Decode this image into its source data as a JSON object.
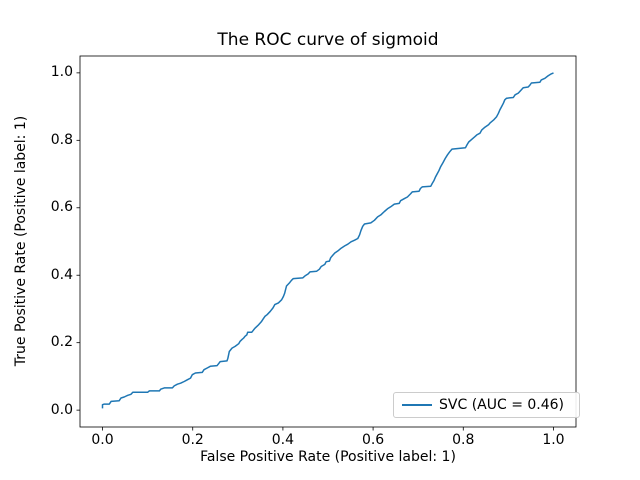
{
  "chart_data": {
    "type": "line",
    "title": "The ROC curve of sigmoid",
    "xlabel": "False Positive Rate (Positive label: 1)",
    "ylabel": "True Positive Rate (Positive label: 1)",
    "xlim": [
      -0.05,
      1.05
    ],
    "ylim": [
      -0.05,
      1.05
    ],
    "xticks": [
      0.0,
      0.2,
      0.4,
      0.6,
      0.8,
      1.0
    ],
    "xtick_labels": [
      "0.0",
      "0.2",
      "0.4",
      "0.6",
      "0.8",
      "1.0"
    ],
    "yticks": [
      0.0,
      0.2,
      0.4,
      0.6,
      0.8,
      1.0
    ],
    "ytick_labels": [
      "0.0",
      "0.2",
      "0.4",
      "0.6",
      "0.8",
      "1.0"
    ],
    "grid": false,
    "background": "#ffffff",
    "axes_edge_color": "#000000",
    "legend": {
      "position": "lower right",
      "edge_color": "#cccccc",
      "entries": [
        {
          "label": "SVC (AUC = 0.46)",
          "color": "#1f77b4"
        }
      ]
    },
    "series": [
      {
        "name": "SVC",
        "auc": 0.46,
        "color": "#1f77b4",
        "line_width": 1.5,
        "points": [
          [
            0.0,
            0.005
          ],
          [
            0.0,
            0.016
          ],
          [
            0.004,
            0.018
          ],
          [
            0.015,
            0.018
          ],
          [
            0.019,
            0.026
          ],
          [
            0.037,
            0.028
          ],
          [
            0.041,
            0.036
          ],
          [
            0.048,
            0.039
          ],
          [
            0.056,
            0.044
          ],
          [
            0.063,
            0.047
          ],
          [
            0.067,
            0.053
          ],
          [
            0.1,
            0.053
          ],
          [
            0.104,
            0.057
          ],
          [
            0.126,
            0.057
          ],
          [
            0.129,
            0.062
          ],
          [
            0.137,
            0.066
          ],
          [
            0.155,
            0.066
          ],
          [
            0.159,
            0.072
          ],
          [
            0.166,
            0.077
          ],
          [
            0.173,
            0.08
          ],
          [
            0.181,
            0.085
          ],
          [
            0.188,
            0.09
          ],
          [
            0.195,
            0.095
          ],
          [
            0.199,
            0.105
          ],
          [
            0.206,
            0.11
          ],
          [
            0.221,
            0.112
          ],
          [
            0.225,
            0.12
          ],
          [
            0.232,
            0.125
          ],
          [
            0.239,
            0.13
          ],
          [
            0.254,
            0.132
          ],
          [
            0.258,
            0.139
          ],
          [
            0.261,
            0.144
          ],
          [
            0.276,
            0.146
          ],
          [
            0.278,
            0.154
          ],
          [
            0.281,
            0.174
          ],
          [
            0.287,
            0.184
          ],
          [
            0.294,
            0.189
          ],
          [
            0.302,
            0.197
          ],
          [
            0.305,
            0.204
          ],
          [
            0.309,
            0.209
          ],
          [
            0.313,
            0.214
          ],
          [
            0.316,
            0.219
          ],
          [
            0.32,
            0.223
          ],
          [
            0.322,
            0.231
          ],
          [
            0.331,
            0.231
          ],
          [
            0.335,
            0.238
          ],
          [
            0.338,
            0.243
          ],
          [
            0.346,
            0.253
          ],
          [
            0.352,
            0.262
          ],
          [
            0.356,
            0.27
          ],
          [
            0.36,
            0.278
          ],
          [
            0.365,
            0.283
          ],
          [
            0.372,
            0.293
          ],
          [
            0.378,
            0.303
          ],
          [
            0.382,
            0.313
          ],
          [
            0.39,
            0.318
          ],
          [
            0.397,
            0.327
          ],
          [
            0.401,
            0.337
          ],
          [
            0.404,
            0.347
          ],
          [
            0.408,
            0.368
          ],
          [
            0.415,
            0.378
          ],
          [
            0.419,
            0.385
          ],
          [
            0.423,
            0.39
          ],
          [
            0.444,
            0.392
          ],
          [
            0.449,
            0.398
          ],
          [
            0.456,
            0.404
          ],
          [
            0.46,
            0.41
          ],
          [
            0.475,
            0.412
          ],
          [
            0.481,
            0.418
          ],
          [
            0.485,
            0.426
          ],
          [
            0.493,
            0.432
          ],
          [
            0.496,
            0.44
          ],
          [
            0.503,
            0.442
          ],
          [
            0.506,
            0.452
          ],
          [
            0.511,
            0.46
          ],
          [
            0.515,
            0.466
          ],
          [
            0.522,
            0.472
          ],
          [
            0.529,
            0.48
          ],
          [
            0.537,
            0.487
          ],
          [
            0.544,
            0.492
          ],
          [
            0.551,
            0.499
          ],
          [
            0.559,
            0.504
          ],
          [
            0.566,
            0.509
          ],
          [
            0.57,
            0.52
          ],
          [
            0.573,
            0.532
          ],
          [
            0.577,
            0.545
          ],
          [
            0.581,
            0.552
          ],
          [
            0.595,
            0.555
          ],
          [
            0.603,
            0.563
          ],
          [
            0.61,
            0.573
          ],
          [
            0.617,
            0.579
          ],
          [
            0.625,
            0.589
          ],
          [
            0.632,
            0.597
          ],
          [
            0.639,
            0.603
          ],
          [
            0.647,
            0.611
          ],
          [
            0.658,
            0.613
          ],
          [
            0.661,
            0.621
          ],
          [
            0.669,
            0.627
          ],
          [
            0.676,
            0.632
          ],
          [
            0.683,
            0.641
          ],
          [
            0.687,
            0.647
          ],
          [
            0.702,
            0.649
          ],
          [
            0.705,
            0.657
          ],
          [
            0.709,
            0.662
          ],
          [
            0.728,
            0.664
          ],
          [
            0.731,
            0.672
          ],
          [
            0.735,
            0.681
          ],
          [
            0.738,
            0.69
          ],
          [
            0.742,
            0.7
          ],
          [
            0.746,
            0.71
          ],
          [
            0.75,
            0.722
          ],
          [
            0.755,
            0.734
          ],
          [
            0.76,
            0.746
          ],
          [
            0.765,
            0.757
          ],
          [
            0.77,
            0.766
          ],
          [
            0.775,
            0.774
          ],
          [
            0.805,
            0.778
          ],
          [
            0.808,
            0.786
          ],
          [
            0.812,
            0.795
          ],
          [
            0.819,
            0.803
          ],
          [
            0.826,
            0.811
          ],
          [
            0.83,
            0.816
          ],
          [
            0.837,
            0.821
          ],
          [
            0.841,
            0.831
          ],
          [
            0.848,
            0.839
          ],
          [
            0.856,
            0.846
          ],
          [
            0.859,
            0.851
          ],
          [
            0.867,
            0.86
          ],
          [
            0.874,
            0.87
          ],
          [
            0.878,
            0.88
          ],
          [
            0.881,
            0.89
          ],
          [
            0.885,
            0.9
          ],
          [
            0.889,
            0.91
          ],
          [
            0.892,
            0.92
          ],
          [
            0.896,
            0.925
          ],
          [
            0.911,
            0.927
          ],
          [
            0.915,
            0.935
          ],
          [
            0.922,
            0.94
          ],
          [
            0.929,
            0.95
          ],
          [
            0.933,
            0.956
          ],
          [
            0.944,
            0.958
          ],
          [
            0.948,
            0.964
          ],
          [
            0.951,
            0.97
          ],
          [
            0.97,
            0.972
          ],
          [
            0.973,
            0.979
          ],
          [
            0.981,
            0.984
          ],
          [
            0.988,
            0.991
          ],
          [
            0.995,
            0.997
          ],
          [
            1.0,
            1.0
          ]
        ]
      }
    ]
  }
}
